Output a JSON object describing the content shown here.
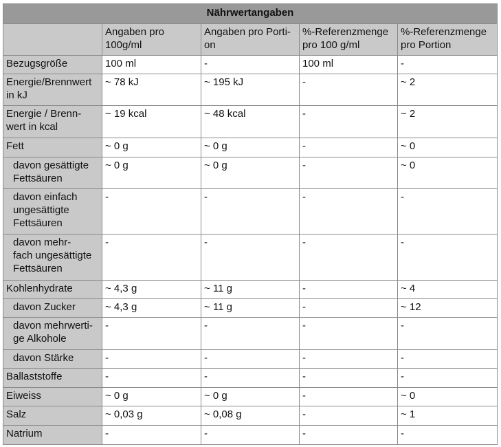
{
  "title": "Nährwertangaben",
  "columns": [
    "",
    "Angaben pro\n100g/ml",
    "Angaben pro Porti-\non",
    "%-Referenzmenge\npro 100 g/ml",
    "%-Referenzmenge\npro Portion"
  ],
  "rows": [
    {
      "label": "Bezugsgröße",
      "sub": false,
      "values": [
        "100 ml",
        "-",
        "100 ml",
        "-"
      ]
    },
    {
      "label": "Energie/Brennwert\nin kJ",
      "sub": false,
      "values": [
        "~ 78 kJ",
        "~ 195 kJ",
        "-",
        "~ 2"
      ]
    },
    {
      "label": "Energie / Brenn-\nwert in kcal",
      "sub": false,
      "values": [
        "~ 19 kcal",
        "~ 48 kcal",
        "-",
        "~ 2"
      ]
    },
    {
      "label": "Fett",
      "sub": false,
      "values": [
        "~ 0 g",
        "~ 0 g",
        "-",
        "~ 0"
      ]
    },
    {
      "label": "davon gesättigte\nFettsäuren",
      "sub": true,
      "values": [
        "~ 0 g",
        "~ 0 g",
        "-",
        "~ 0"
      ]
    },
    {
      "label": "davon einfach\nungesättigte\nFettsäuren",
      "sub": true,
      "values": [
        "-",
        "-",
        "-",
        "-"
      ]
    },
    {
      "label": "davon mehr-\nfach ungesättigte\nFettsäuren",
      "sub": true,
      "values": [
        "-",
        "-",
        "-",
        "-"
      ]
    },
    {
      "label": "Kohlenhydrate",
      "sub": false,
      "values": [
        "~ 4,3 g",
        "~ 11 g",
        "-",
        "~ 4"
      ]
    },
    {
      "label": "davon Zucker",
      "sub": true,
      "values": [
        "~ 4,3 g",
        "~ 11 g",
        "-",
        "~ 12"
      ]
    },
    {
      "label": "davon mehrwerti-\nge Alkohole",
      "sub": true,
      "values": [
        "-",
        "-",
        "-",
        "-"
      ]
    },
    {
      "label": "davon Stärke",
      "sub": true,
      "values": [
        "-",
        "-",
        "-",
        "-"
      ]
    },
    {
      "label": "Ballaststoffe",
      "sub": false,
      "values": [
        "-",
        "-",
        "-",
        "-"
      ]
    },
    {
      "label": "Eiweiss",
      "sub": false,
      "values": [
        "~ 0 g",
        "~ 0 g",
        "-",
        "~ 0"
      ]
    },
    {
      "label": "Salz",
      "sub": false,
      "values": [
        "~ 0,03 g",
        "~ 0,08 g",
        "-",
        "~ 1"
      ]
    },
    {
      "label": "Natrium",
      "sub": false,
      "values": [
        "-",
        "-",
        "-",
        "-"
      ]
    }
  ]
}
